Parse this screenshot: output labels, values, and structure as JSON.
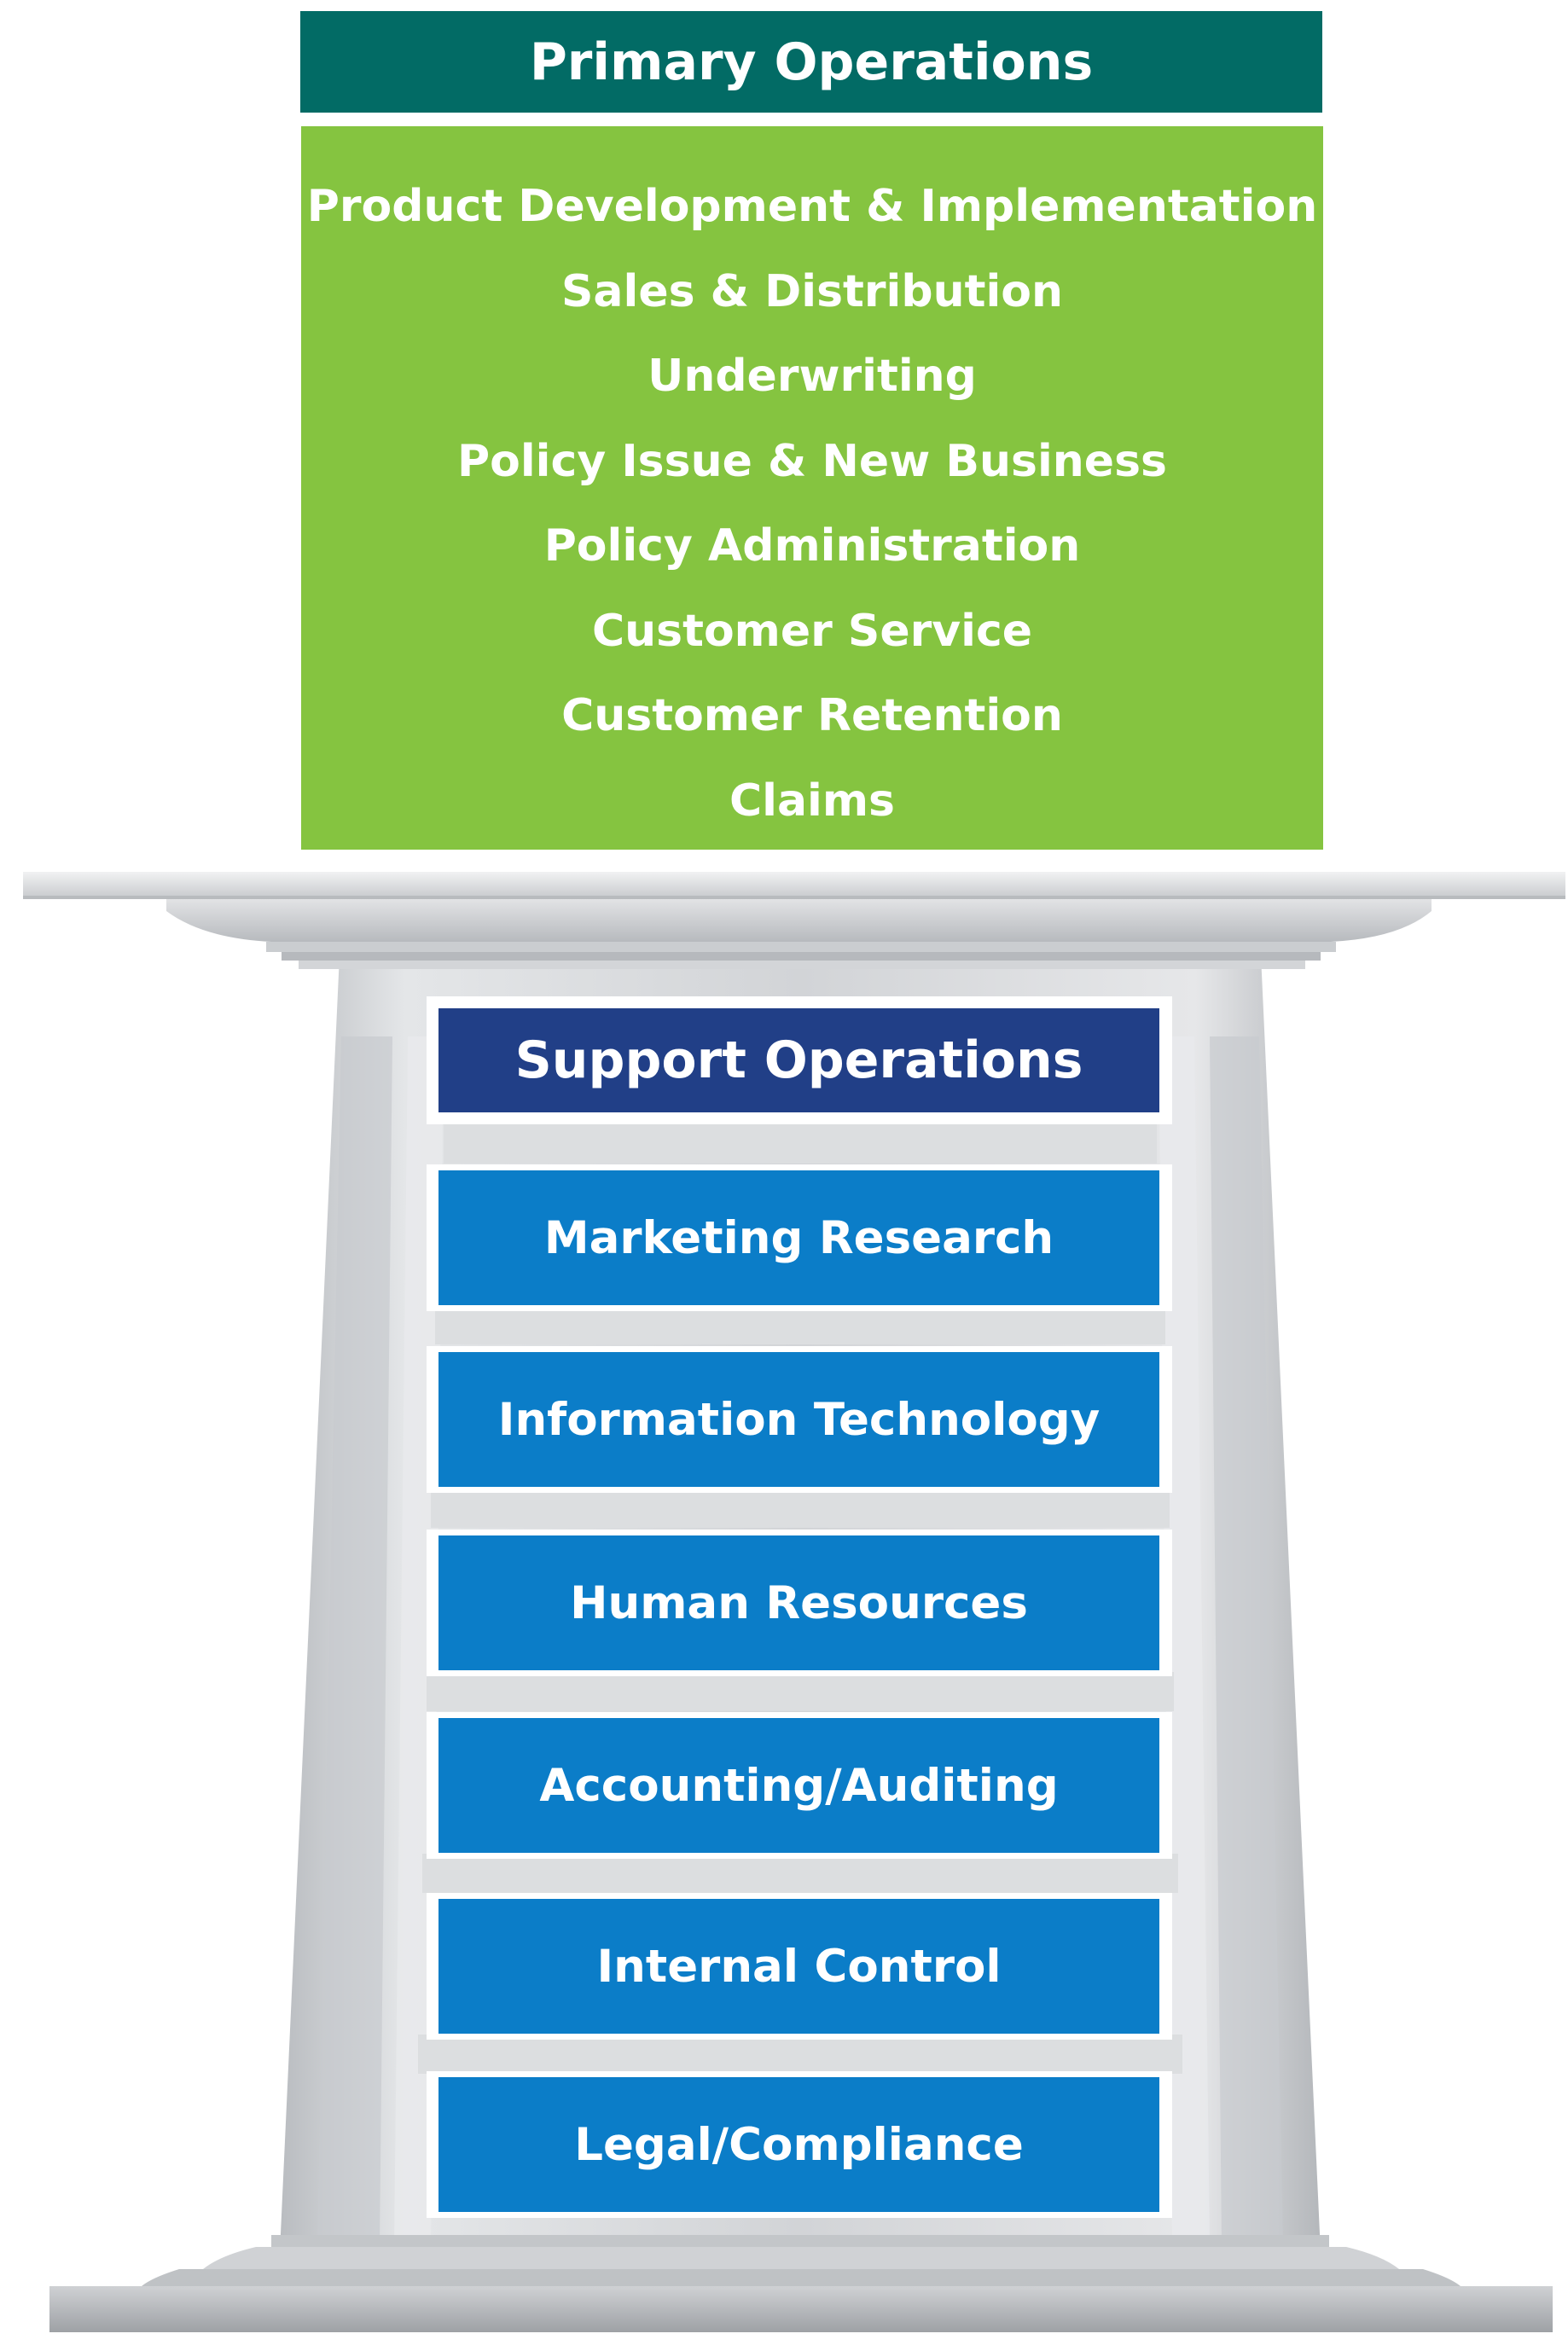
{
  "primary": {
    "title": "Primary Operations",
    "items": [
      "Product Development & Implementation",
      "Sales & Distribution",
      "Underwriting",
      "Policy Issue & New Business",
      "Policy Administration",
      "Customer Service",
      "Customer Retention",
      "Claims"
    ]
  },
  "support": {
    "title": "Support Operations",
    "items": [
      "Marketing Research",
      "Information Technology",
      "Human Resources",
      "Accounting/Auditing",
      "Internal Control",
      "Legal/Compliance"
    ]
  },
  "colors": {
    "primary_header": "#026b65",
    "primary_body": "#85c440",
    "support_header": "#213f87",
    "support_item": "#0b7dc8",
    "pillar": "#d6d8da"
  }
}
